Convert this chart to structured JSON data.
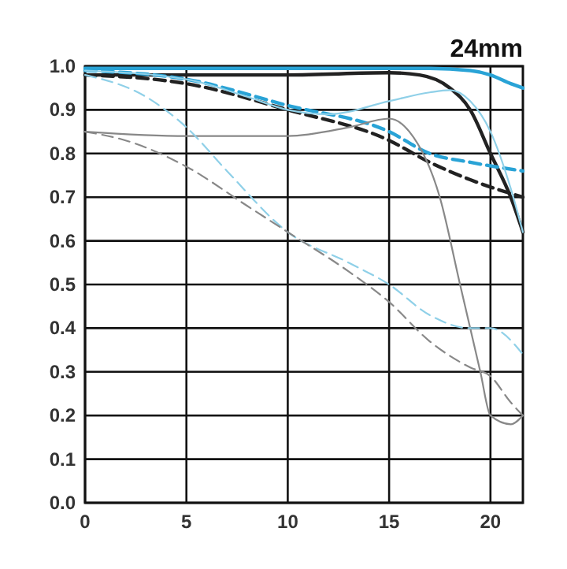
{
  "chart_data": {
    "type": "line",
    "title": "24mm",
    "xlim": [
      0,
      21.6
    ],
    "xticks": [
      0,
      5,
      10,
      15,
      20
    ],
    "ylim": [
      0,
      1
    ],
    "yticks": [
      {
        "value": 0,
        "label": "0.0"
      },
      0.1,
      0.2,
      0.3,
      0.4,
      0.5,
      0.6,
      0.7,
      0.8,
      0.9,
      {
        "value": 1,
        "label": "1.0"
      }
    ],
    "grid": true,
    "series": [
      {
        "color": "#29a3d6",
        "line_style": "solid",
        "x": [
          0,
          5,
          10,
          15,
          17,
          19,
          20,
          21,
          21.6
        ],
        "values": [
          0.995,
          0.995,
          0.995,
          0.995,
          0.995,
          0.99,
          0.98,
          0.96,
          0.95
        ]
      },
      {
        "color": "#222222",
        "line_style": "solid",
        "x": [
          0,
          5,
          10,
          15,
          16.5,
          18,
          19,
          20,
          21,
          21.6
        ],
        "values": [
          0.98,
          0.98,
          0.98,
          0.985,
          0.98,
          0.95,
          0.9,
          0.8,
          0.7,
          0.62
        ]
      },
      {
        "color": "#29a3d6",
        "line_style": "dashed",
        "x": [
          0,
          5,
          10,
          15,
          17,
          19,
          21.6
        ],
        "values": [
          0.99,
          0.97,
          0.91,
          0.85,
          0.8,
          0.78,
          0.76
        ]
      },
      {
        "color": "#222222",
        "line_style": "dashed",
        "x": [
          0,
          5,
          10,
          15,
          17,
          19,
          21.6
        ],
        "values": [
          0.98,
          0.96,
          0.9,
          0.83,
          0.78,
          0.74,
          0.7
        ]
      },
      {
        "color": "#8fd0e8",
        "line_style": "solid",
        "x": [
          0,
          5,
          8,
          10,
          12,
          15,
          17,
          18,
          19,
          20,
          21,
          21.6
        ],
        "values": [
          0.99,
          0.97,
          0.93,
          0.9,
          0.89,
          0.92,
          0.94,
          0.945,
          0.92,
          0.85,
          0.72,
          0.62
        ]
      },
      {
        "color": "#888888",
        "line_style": "solid",
        "x": [
          0,
          5,
          10,
          13,
          15,
          16,
          17.5,
          18.5,
          19.5,
          20,
          21,
          21.6
        ],
        "values": [
          0.85,
          0.84,
          0.84,
          0.86,
          0.88,
          0.85,
          0.7,
          0.5,
          0.3,
          0.2,
          0.18,
          0.2
        ]
      },
      {
        "color": "#8fd0e8",
        "line_style": "dashed",
        "x": [
          0,
          3,
          5,
          7,
          10,
          13,
          15,
          17,
          19,
          20,
          21.6
        ],
        "values": [
          0.98,
          0.93,
          0.86,
          0.76,
          0.62,
          0.55,
          0.5,
          0.43,
          0.4,
          0.4,
          0.34
        ]
      },
      {
        "color": "#888888",
        "line_style": "dashed",
        "x": [
          0,
          2,
          5,
          8,
          10,
          13,
          15,
          17,
          19,
          20,
          21,
          21.6
        ],
        "values": [
          0.85,
          0.83,
          0.77,
          0.68,
          0.62,
          0.53,
          0.46,
          0.37,
          0.31,
          0.29,
          0.23,
          0.2
        ]
      }
    ]
  }
}
